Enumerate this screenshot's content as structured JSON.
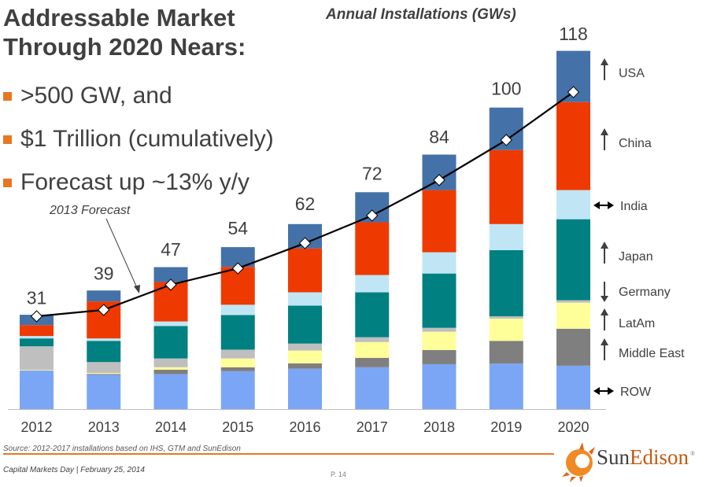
{
  "slide": {
    "title_line1": "Addressable Market",
    "title_line2": "Through 2020 Nears:",
    "bullets": [
      ">500 GW, and",
      "$1 Trillion (cumulatively)",
      "Forecast up ~13% y/y"
    ],
    "accent_color": "#e87722"
  },
  "footer": {
    "source": "Source: 2012-2017 installations based on IHS, GTM and SunEdison",
    "event": "Capital Markets Day | February 25, 2014",
    "page": "P. 14",
    "logo_sun": "Sun",
    "logo_edison": "Edison",
    "logo_reg": "®"
  },
  "chart_data": {
    "type": "bar",
    "stacked": true,
    "title": "Annual Installations (GWs)",
    "xlabel": "",
    "ylabel": "",
    "ylim": [
      0,
      120
    ],
    "grid": false,
    "categories": [
      "2012",
      "2013",
      "2014",
      "2015",
      "2016",
      "2017",
      "2018",
      "2019",
      "2020"
    ],
    "totals": [
      31,
      39,
      47,
      54,
      62,
      72,
      84,
      100,
      118
    ],
    "series": [
      {
        "name": "ROW",
        "trend": "flat",
        "color": "#7aa6f5",
        "values": [
          12.7,
          11.3,
          11.5,
          12.5,
          13.3,
          13.8,
          14.8,
          15.0,
          14.3
        ]
      },
      {
        "name": "Middle East",
        "trend": "up",
        "color": "#7f7f7f",
        "values": [
          0.0,
          0.3,
          1.5,
          1.3,
          1.8,
          3.1,
          4.7,
          7.5,
          12.2
        ]
      },
      {
        "name": "LatAm",
        "trend": "up",
        "color": "#ffff99",
        "values": [
          0.2,
          0.3,
          0.8,
          2.9,
          4.2,
          5.2,
          6.0,
          7.3,
          8.6
        ]
      },
      {
        "name": "Germany",
        "trend": "down",
        "color": "#bfbfbf",
        "values": [
          7.8,
          3.6,
          2.9,
          2.9,
          2.3,
          1.6,
          1.3,
          0.8,
          0.8
        ]
      },
      {
        "name": "Japan",
        "trend": "up",
        "color": "#008080",
        "values": [
          2.6,
          7.0,
          10.7,
          11.4,
          12.5,
          14.8,
          17.9,
          21.8,
          26.7
        ]
      },
      {
        "name": "India",
        "trend": "flat",
        "color": "#c0e6f5",
        "values": [
          0.8,
          0.8,
          1.5,
          3.4,
          4.4,
          5.7,
          7.0,
          8.6,
          9.6
        ]
      },
      {
        "name": "China",
        "trend": "up",
        "color": "#ee3a00",
        "values": [
          3.6,
          12.2,
          13.0,
          12.5,
          14.5,
          17.4,
          20.5,
          24.4,
          29.0
        ]
      },
      {
        "name": "USA",
        "trend": "up",
        "color": "#4472a8",
        "values": [
          3.4,
          3.6,
          4.9,
          6.5,
          8.0,
          9.9,
          11.7,
          14.0,
          16.9
        ]
      }
    ],
    "line_series": {
      "name": "2013 Forecast",
      "color": "#000000",
      "values": [
        30.6,
        32.7,
        41.0,
        46.4,
        54.7,
        63.8,
        75.5,
        88.7,
        104.5
      ]
    },
    "annotations": [
      {
        "text": "2013 Forecast",
        "points_to": "line between 2013 and 2014"
      }
    ],
    "legend": {
      "placement": "right",
      "entries": [
        {
          "label": "USA",
          "icon": "arrow-up-icon"
        },
        {
          "label": "China",
          "icon": "arrow-up-icon"
        },
        {
          "label": "India",
          "icon": "arrow-left-right-icon"
        },
        {
          "label": "Japan",
          "icon": "arrow-up-icon"
        },
        {
          "label": "Germany",
          "icon": "arrow-down-icon"
        },
        {
          "label": "LatAm",
          "icon": "arrow-up-icon"
        },
        {
          "label": "Middle East",
          "icon": "arrow-up-icon"
        },
        {
          "label": "ROW",
          "icon": "arrow-left-right-icon"
        }
      ]
    }
  }
}
